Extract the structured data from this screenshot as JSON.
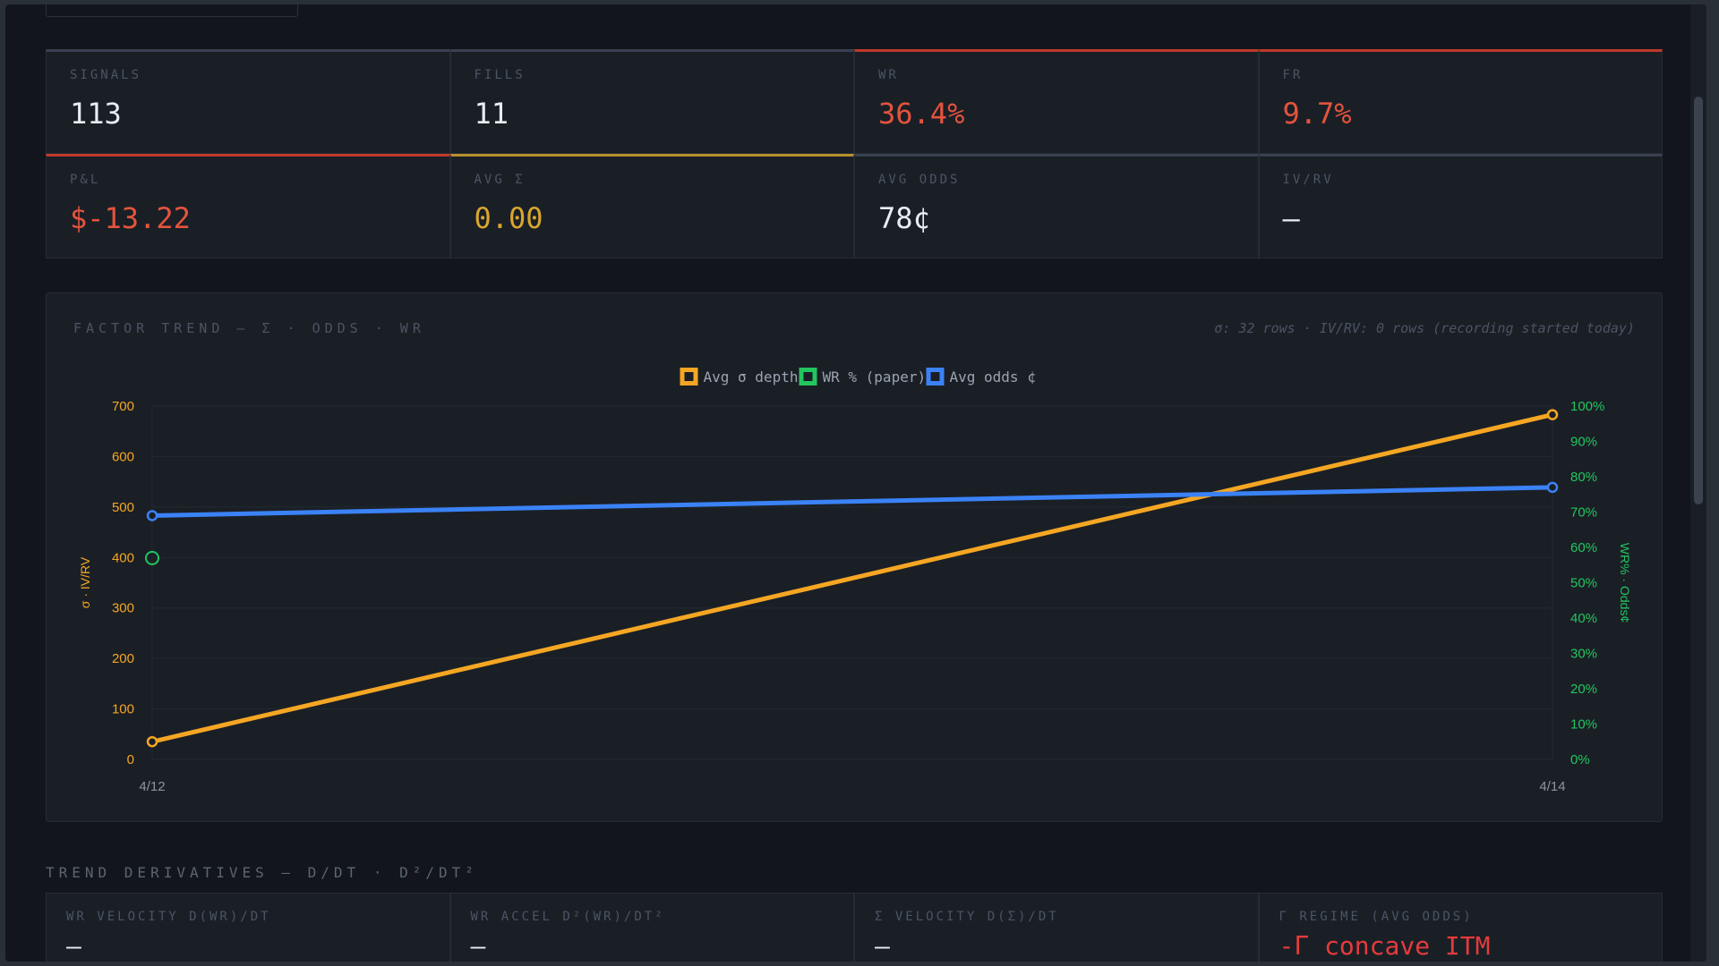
{
  "stats": [
    {
      "label": "SIGNALS",
      "value": "113"
    },
    {
      "label": "FILLS",
      "value": "11"
    },
    {
      "label": "WR",
      "value": "36.4%"
    },
    {
      "label": "FR",
      "value": "9.7%"
    },
    {
      "label": "P&L",
      "value": "$-13.22"
    },
    {
      "label": "AVG Σ",
      "value": "0.00"
    },
    {
      "label": "AVG ODDS",
      "value": "78¢"
    },
    {
      "label": "IV/RV",
      "value": "—"
    }
  ],
  "chart_card": {
    "title": "FACTOR TREND — Σ · ODDS · WR",
    "note": "σ: 32 rows · IV/RV: 0 rows (recording started today)"
  },
  "chart_data": {
    "type": "line",
    "x": [
      "4/12",
      "4/14"
    ],
    "left_axis": {
      "label": "σ · IV/RV",
      "ylim": [
        0,
        700
      ],
      "ticks": [
        "700",
        "600",
        "500",
        "400",
        "300",
        "200",
        "100",
        "0"
      ]
    },
    "right_axis": {
      "label": "WR% · Odds¢",
      "ylim": [
        0,
        100
      ],
      "ticks": [
        "100%",
        "90%",
        "80%",
        "70%",
        "60%",
        "50%",
        "40%",
        "30%",
        "20%",
        "10%",
        "0%"
      ]
    },
    "series": [
      {
        "name": "Avg σ depth",
        "axis": "left",
        "color": "#f5a623",
        "values": [
          35,
          683
        ]
      },
      {
        "name": "WR % (paper)",
        "axis": "right",
        "color": "#22c55e",
        "values": [
          57,
          null
        ]
      },
      {
        "name": "Avg odds ¢",
        "axis": "right",
        "color": "#3b82f6",
        "values": [
          69,
          77
        ]
      }
    ],
    "legend": "top-center",
    "grid": true
  },
  "derivatives": {
    "title": "TREND DERIVATIVES — D/DT · D²/DT²",
    "items": [
      {
        "label": "WR VELOCITY D(WR)/DT",
        "value": "—"
      },
      {
        "label": "WR ACCEL D²(WR)/DT²",
        "value": "—"
      },
      {
        "label": "Σ VELOCITY D(Σ)/DT",
        "value": "—"
      },
      {
        "label": "Γ REGIME (AVG ODDS)",
        "value": "-Γ concave ITM"
      }
    ]
  },
  "colors": {
    "accent_red": "#e5533d",
    "accent_gold": "#d9a62e",
    "series_orange": "#f5a623",
    "series_green": "#22c55e",
    "series_blue": "#3b82f6"
  }
}
